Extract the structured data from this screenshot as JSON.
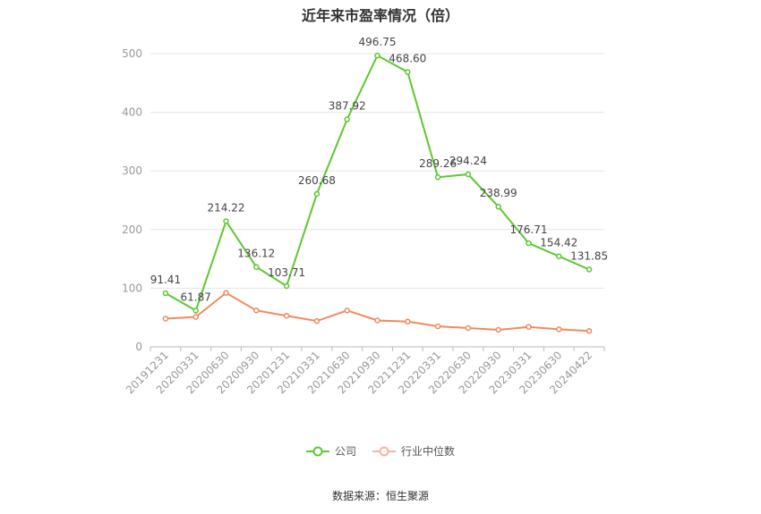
{
  "chart_data": {
    "type": "line",
    "title": "近年来市盈率情况（倍）",
    "categories": [
      "20191231",
      "20200331",
      "20200630",
      "20200930",
      "20201231",
      "20210331",
      "20210630",
      "20210930",
      "20211231",
      "20220331",
      "20220630",
      "20220930",
      "20230331",
      "20230630",
      "20240422"
    ],
    "series": [
      {
        "name": "公司",
        "color": "#5cc832",
        "values": [
          91.41,
          61.87,
          214.22,
          136.12,
          103.71,
          260.68,
          387.92,
          496.75,
          468.6,
          289.26,
          294.24,
          238.99,
          176.71,
          154.42,
          131.85
        ],
        "labels": [
          "91.41",
          "61.87",
          "214.22",
          "136.12",
          "103.71",
          "260.68",
          "387.92",
          "496.75",
          "468.60",
          "289.26",
          "294.24",
          "238.99",
          "176.71",
          "154.42",
          "131.85"
        ]
      },
      {
        "name": "行业中位数",
        "color": "#f08a5d",
        "values": [
          48,
          51,
          92,
          62,
          53,
          44,
          62,
          45,
          43,
          35,
          32,
          29,
          34,
          30,
          27
        ]
      }
    ],
    "yticks": [
      "0",
      "100",
      "200",
      "300",
      "400",
      "500"
    ],
    "ylim": [
      0,
      500
    ],
    "grid": true,
    "legend_position": "bottom",
    "source": "数据来源：恒生聚源"
  }
}
